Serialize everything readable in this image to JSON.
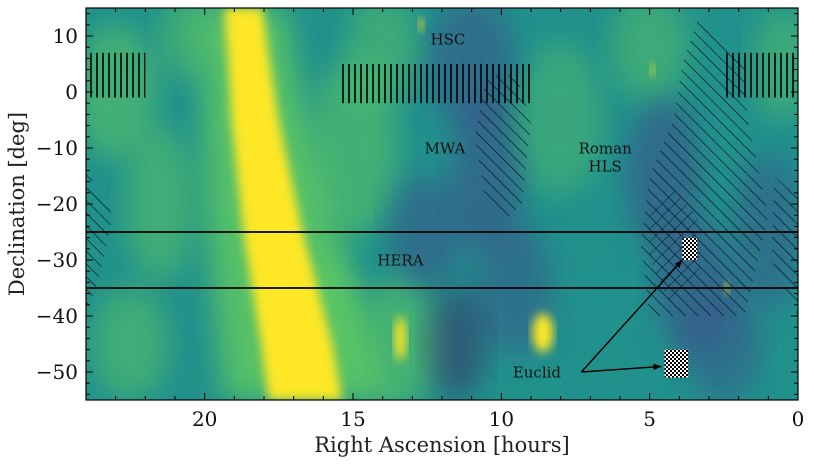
{
  "chart_data": {
    "type": "heatmap",
    "title": "",
    "xlabel": "Right Ascension [hours]",
    "ylabel": "Declination [deg]",
    "xlim": [
      24,
      0
    ],
    "ylim": [
      -55,
      15
    ],
    "x_ticks": [
      20,
      15,
      10,
      5,
      0
    ],
    "y_ticks": [
      10,
      0,
      -10,
      -20,
      -30,
      -40,
      -50
    ],
    "x_tick_labels": [
      "20",
      "15",
      "10",
      "5",
      "0"
    ],
    "y_tick_labels": [
      "10",
      "0",
      "−10",
      "−20",
      "−30",
      "−40",
      "−50"
    ],
    "colormap": [
      "#440154",
      "#3b528b",
      "#21918c",
      "#5ec962",
      "#fde725"
    ],
    "galactic_plane": [
      {
        "ra": 18.7,
        "dec": 15,
        "half_width": 0.65
      },
      {
        "ra": 18.5,
        "dec": 5,
        "half_width": 0.7
      },
      {
        "ra": 18.3,
        "dec": -5,
        "half_width": 0.8
      },
      {
        "ra": 18.0,
        "dec": -15,
        "half_width": 0.9
      },
      {
        "ra": 17.7,
        "dec": -25,
        "half_width": 1.0
      },
      {
        "ra": 17.3,
        "dec": -35,
        "half_width": 1.1
      },
      {
        "ra": 16.9,
        "dec": -45,
        "half_width": 1.2
      },
      {
        "ra": 16.6,
        "dec": -55,
        "half_width": 1.25
      }
    ],
    "hera_band": {
      "dec_top": -25,
      "dec_bottom": -35
    },
    "surveys": [
      {
        "name": "HSC",
        "label": "HSC",
        "label_pos": {
          "ra": 11.8,
          "dec": 8.5
        },
        "regions": [
          {
            "ra_min": 22.0,
            "ra_max": 24.0,
            "dec_min": -1,
            "dec_max": 7
          },
          {
            "ra_min": 9.0,
            "ra_max": 15.4,
            "dec_min": -2,
            "dec_max": 5
          },
          {
            "ra_min": 0.0,
            "ra_max": 2.5,
            "dec_min": -1,
            "dec_max": 7
          }
        ]
      },
      {
        "name": "MWA",
        "label": "MWA",
        "label_pos": {
          "ra": 11.9,
          "dec": -11
        }
      },
      {
        "name": "Roman",
        "label_lines": [
          "Roman",
          "HLS"
        ],
        "label_pos": {
          "ra": 6.5,
          "dec": -11
        }
      },
      {
        "name": "HERA",
        "label": "HERA",
        "label_pos": {
          "ra": 13.4,
          "dec": -31
        }
      },
      {
        "name": "Euclid",
        "label": "Euclid",
        "label_pos": {
          "ra": 8.8,
          "dec": -51
        }
      }
    ],
    "mwa_region": [
      [
        10.5,
        3
      ],
      [
        9.5,
        3
      ],
      [
        9.0,
        -5
      ],
      [
        9.3,
        -20
      ],
      [
        9.9,
        -23
      ],
      [
        10.5,
        -20
      ],
      [
        10.9,
        -8
      ]
    ],
    "roman_region": [
      [
        3.3,
        14
      ],
      [
        1.8,
        5
      ],
      [
        1.7,
        -5
      ],
      [
        1.0,
        -22
      ],
      [
        1.8,
        -40
      ],
      [
        5.0,
        -40
      ],
      [
        5.3,
        -27
      ],
      [
        5.0,
        -15
      ],
      [
        4.2,
        -5
      ],
      [
        3.9,
        5
      ]
    ],
    "roman_right_region": [
      [
        0.8,
        -15
      ],
      [
        0.0,
        -19
      ],
      [
        0.0,
        -40
      ],
      [
        0.9,
        -30
      ]
    ],
    "roman_left_region": [
      [
        24.0,
        -14
      ],
      [
        23.1,
        -22
      ],
      [
        23.5,
        -32
      ],
      [
        24.0,
        -40
      ]
    ],
    "euclid_patches": [
      {
        "ra_min": 3.4,
        "ra_max": 3.9,
        "dec_min": -30,
        "dec_max": -26
      },
      {
        "ra_min": 3.7,
        "ra_max": 4.5,
        "dec_min": -51,
        "dec_max": -46
      }
    ],
    "euclid_arrows": [
      {
        "from": {
          "ra": 7.3,
          "dec": -50
        },
        "to": {
          "ra": 3.9,
          "dec": -30
        }
      },
      {
        "from": {
          "ra": 7.3,
          "dec": -50
        },
        "to": {
          "ra": 4.6,
          "dec": -49
        }
      }
    ]
  }
}
